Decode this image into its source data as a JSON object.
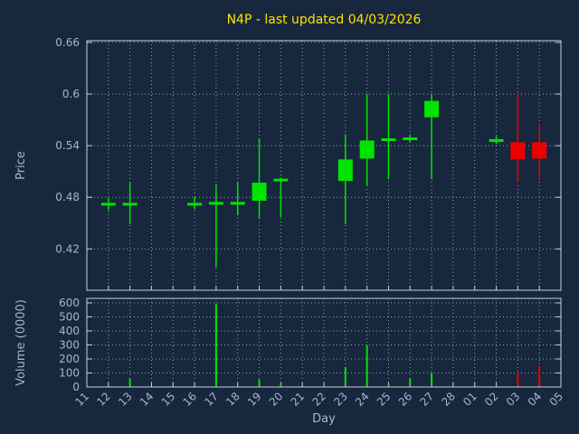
{
  "colors": {
    "background": "#17273d",
    "title": "#ffe100",
    "axis_text": "#a2b8cc",
    "border": "#c6d2de",
    "grid": "#8fa3b8",
    "up": "#00e400",
    "down": "#ec0000"
  },
  "chart_data": {
    "type": "candlestick",
    "title": "N4P - last updated 04/03/2026",
    "xlabel": "Day",
    "legend": "none",
    "grid": "dotted",
    "price_axis": {
      "label": "Price",
      "tick_labels": [
        "0.42",
        "0.48",
        "0.54",
        "0.6",
        "0.66"
      ],
      "tick_values": [
        0.42,
        0.48,
        0.54,
        0.6,
        0.66
      ],
      "range": [
        0.372,
        0.662
      ]
    },
    "volume_axis": {
      "label": "Volume (0000)",
      "tick_labels": [
        "0",
        "100",
        "200",
        "300",
        "400",
        "500",
        "600"
      ],
      "tick_values": [
        0,
        100,
        200,
        300,
        400,
        500,
        600
      ],
      "range": [
        0,
        632
      ]
    },
    "x_ticks": [
      "11",
      "12",
      "13",
      "14",
      "15",
      "16",
      "17",
      "18",
      "19",
      "20",
      "21",
      "22",
      "23",
      "24",
      "25",
      "26",
      "27",
      "28",
      "01",
      "02",
      "03",
      "04",
      "05"
    ],
    "candles": [
      {
        "day": "12",
        "open": 0.472,
        "high": 0.479,
        "low": 0.465,
        "close": 0.472,
        "volume": 0
      },
      {
        "day": "13",
        "open": 0.472,
        "high": 0.498,
        "low": 0.449,
        "close": 0.472,
        "volume": 60
      },
      {
        "day": "16",
        "open": 0.472,
        "high": 0.481,
        "low": 0.466,
        "close": 0.472,
        "volume": 0
      },
      {
        "day": "17",
        "open": 0.473,
        "high": 0.495,
        "low": 0.399,
        "close": 0.473,
        "volume": 590
      },
      {
        "day": "18",
        "open": 0.473,
        "high": 0.498,
        "low": 0.459,
        "close": 0.473,
        "volume": 0
      },
      {
        "day": "19",
        "open": 0.476,
        "high": 0.548,
        "low": 0.455,
        "close": 0.497,
        "volume": 55
      },
      {
        "day": "20",
        "open": 0.5,
        "high": 0.503,
        "low": 0.457,
        "close": 0.5,
        "volume": 30
      },
      {
        "day": "23",
        "open": 0.499,
        "high": 0.553,
        "low": 0.449,
        "close": 0.524,
        "volume": 140
      },
      {
        "day": "24",
        "open": 0.525,
        "high": 0.6,
        "low": 0.494,
        "close": 0.546,
        "volume": 300
      },
      {
        "day": "25",
        "open": 0.547,
        "high": 0.6,
        "low": 0.501,
        "close": 0.547,
        "volume": 20
      },
      {
        "day": "26",
        "open": 0.548,
        "high": 0.553,
        "low": 0.544,
        "close": 0.548,
        "volume": 60
      },
      {
        "day": "27",
        "open": 0.573,
        "high": 0.6,
        "low": 0.501,
        "close": 0.592,
        "volume": 100
      },
      {
        "day": "02",
        "open": 0.546,
        "high": 0.551,
        "low": 0.542,
        "close": 0.546,
        "volume": 10
      },
      {
        "day": "03",
        "open": 0.544,
        "high": 0.6,
        "low": 0.497,
        "close": 0.524,
        "volume": 105
      },
      {
        "day": "04",
        "open": 0.544,
        "high": 0.566,
        "low": 0.5,
        "close": 0.525,
        "volume": 150
      }
    ]
  }
}
